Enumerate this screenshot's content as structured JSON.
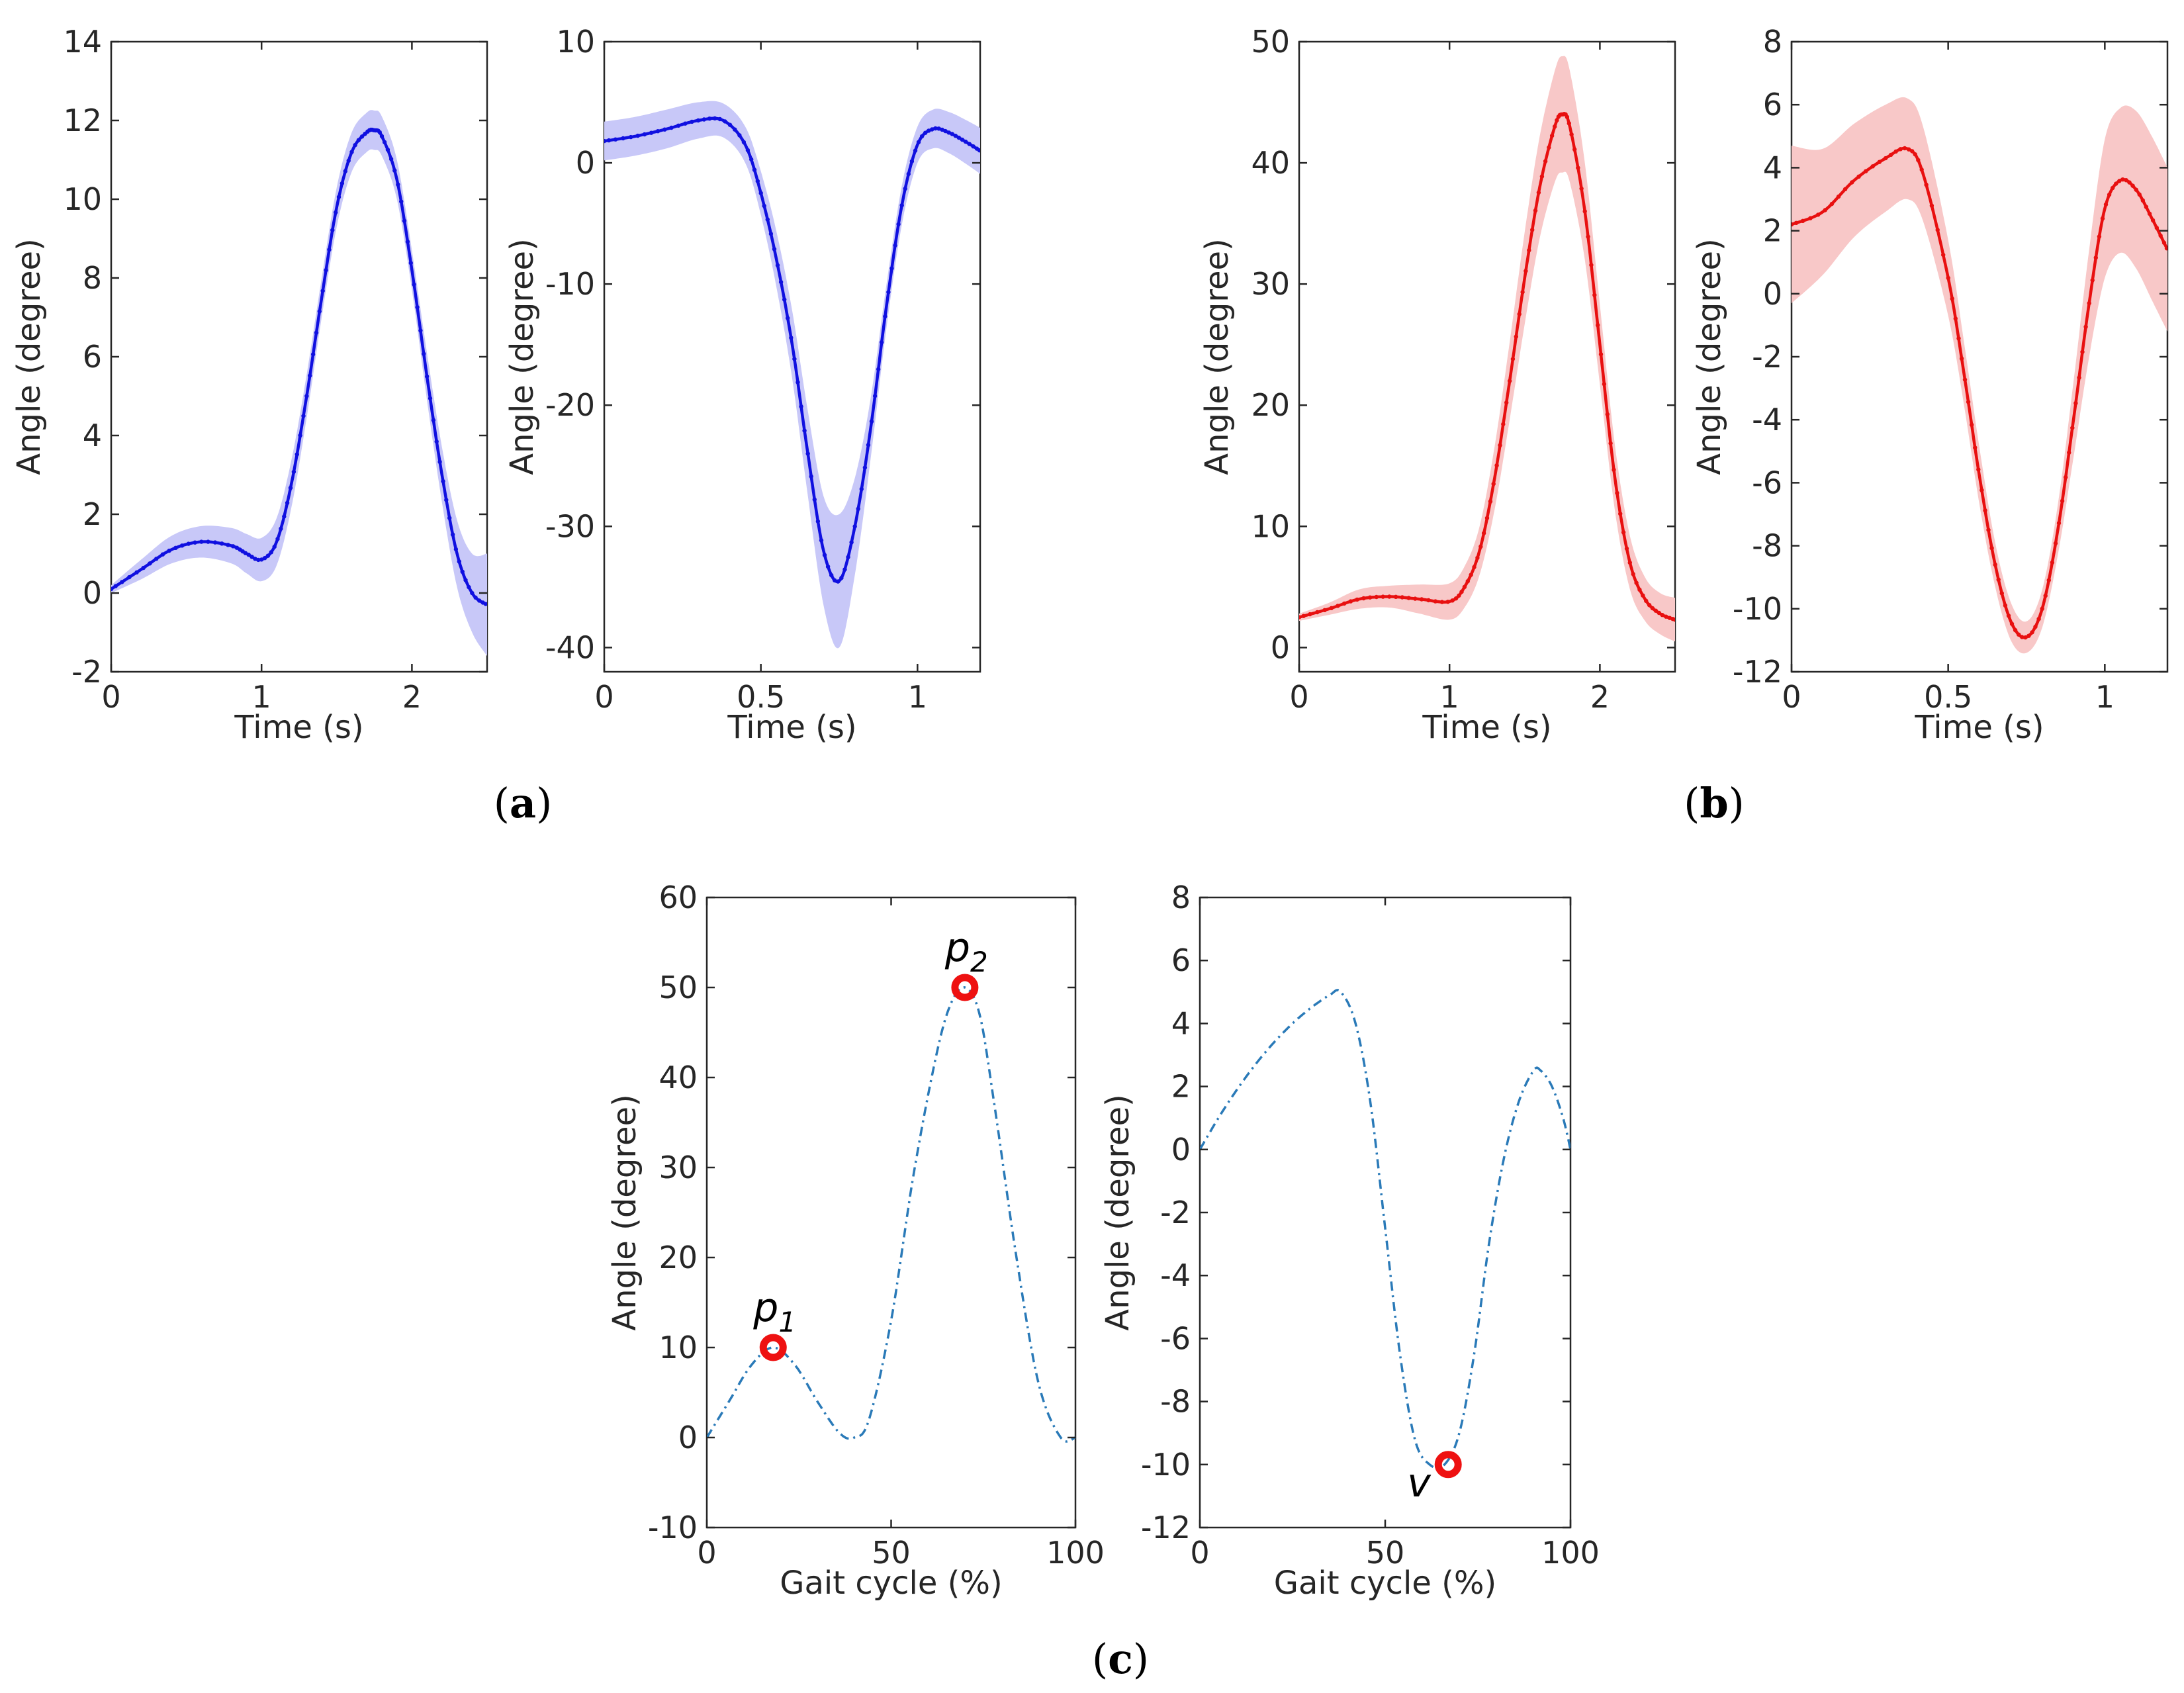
{
  "panel_labels": [
    "(a)",
    "(b)",
    "(c)"
  ],
  "panel_label_parts": [
    {
      "open": "(",
      "letter": "a",
      "close": ")"
    },
    {
      "open": "(",
      "letter": "b",
      "close": ")"
    },
    {
      "open": "(",
      "letter": "c",
      "close": ")"
    }
  ],
  "colors": {
    "blue": "#1010e0",
    "blue_band": "#c8c8f8",
    "red": "#e81010",
    "red_band": "#f8c8c8",
    "dashdot": "#2a7ab8",
    "marker": "#ee1111"
  },
  "chart_data": [
    {
      "id": "a1",
      "panel": "a",
      "type": "line",
      "xlabel": "Time (s)",
      "ylabel": "Angle (degree)",
      "xlim": [
        0,
        2.5
      ],
      "ylim": [
        -2,
        14
      ],
      "xticks": [
        0,
        1,
        2
      ],
      "xtick_labels": [
        "0",
        "1",
        "2"
      ],
      "yticks": [
        -2,
        0,
        2,
        4,
        6,
        8,
        10,
        12,
        14
      ],
      "ytick_labels": [
        "-2",
        "0",
        "2",
        "4",
        "6",
        "8",
        "10",
        "12",
        "14"
      ],
      "color": "blue",
      "band": true,
      "style": "dotted-solid",
      "series": [
        {
          "name": "mean",
          "x": [
            0,
            0.2,
            0.4,
            0.6,
            0.8,
            0.9,
            1.0,
            1.1,
            1.2,
            1.3,
            1.4,
            1.5,
            1.6,
            1.7,
            1.75,
            1.8,
            1.9,
            2.0,
            2.1,
            2.2,
            2.3,
            2.4,
            2.5
          ],
          "y": [
            0.1,
            0.6,
            1.1,
            1.3,
            1.2,
            1.0,
            0.85,
            1.3,
            2.8,
            5.0,
            7.5,
            9.8,
            11.2,
            11.7,
            11.75,
            11.6,
            10.5,
            8.2,
            5.5,
            3.0,
            1.0,
            0.0,
            -0.3
          ],
          "sd": [
            0.1,
            0.25,
            0.35,
            0.4,
            0.45,
            0.5,
            0.55,
            0.6,
            0.6,
            0.55,
            0.5,
            0.5,
            0.5,
            0.5,
            0.5,
            0.5,
            0.5,
            0.5,
            0.6,
            0.7,
            0.85,
            1.0,
            1.3
          ]
        }
      ]
    },
    {
      "id": "a2",
      "panel": "a",
      "type": "line",
      "xlabel": "Time (s)",
      "ylabel": "Angle (degree)",
      "xlim": [
        0,
        1.2
      ],
      "ylim": [
        -42,
        10
      ],
      "xticks": [
        0,
        0.5,
        1
      ],
      "xtick_labels": [
        "0",
        "0.5",
        "1"
      ],
      "yticks": [
        -40,
        -30,
        -20,
        -10,
        0,
        10
      ],
      "ytick_labels": [
        "-40",
        "-30",
        "-20",
        "-10",
        "0",
        "10"
      ],
      "color": "blue",
      "band": true,
      "style": "dotted-solid",
      "series": [
        {
          "name": "mean",
          "x": [
            0,
            0.1,
            0.2,
            0.3,
            0.38,
            0.45,
            0.5,
            0.55,
            0.6,
            0.65,
            0.7,
            0.75,
            0.8,
            0.85,
            0.9,
            0.95,
            1.0,
            1.05,
            1.1,
            1.15,
            1.2
          ],
          "y": [
            1.8,
            2.2,
            2.8,
            3.5,
            3.5,
            1.5,
            -2.5,
            -8.0,
            -15.0,
            -24.0,
            -32.0,
            -34.5,
            -30.0,
            -22.0,
            -12.0,
            -3.5,
            1.5,
            2.8,
            2.5,
            1.8,
            1.0
          ],
          "sd": [
            1.6,
            1.6,
            1.6,
            1.5,
            1.4,
            1.5,
            1.8,
            2.3,
            2.8,
            3.5,
            4.5,
            5.5,
            4.0,
            2.5,
            1.8,
            1.6,
            1.5,
            1.6,
            1.7,
            1.8,
            1.9
          ]
        }
      ]
    },
    {
      "id": "b1",
      "panel": "b",
      "type": "line",
      "xlabel": "Time (s)",
      "ylabel": "Angle (degree)",
      "xlim": [
        0,
        2.5
      ],
      "ylim": [
        -2,
        50
      ],
      "xticks": [
        0,
        1,
        2
      ],
      "xtick_labels": [
        "0",
        "1",
        "2"
      ],
      "yticks": [
        0,
        10,
        20,
        30,
        40,
        50
      ],
      "ytick_labels": [
        "0",
        "10",
        "20",
        "30",
        "40",
        "50"
      ],
      "color": "red",
      "band": true,
      "style": "dotted-solid",
      "series": [
        {
          "name": "mean",
          "x": [
            0,
            0.2,
            0.4,
            0.6,
            0.8,
            1.0,
            1.1,
            1.2,
            1.3,
            1.4,
            1.5,
            1.6,
            1.7,
            1.75,
            1.8,
            1.9,
            2.0,
            2.1,
            2.2,
            2.3,
            2.4,
            2.5
          ],
          "y": [
            2.5,
            3.2,
            4.0,
            4.2,
            4.0,
            3.8,
            5.0,
            8.0,
            14.0,
            22.0,
            30.5,
            38.0,
            43.0,
            44.0,
            43.0,
            36.0,
            25.0,
            14.0,
            7.0,
            4.0,
            2.8,
            2.3
          ],
          "sd": [
            0.3,
            0.5,
            0.8,
            0.9,
            1.2,
            1.5,
            1.7,
            2.0,
            2.6,
            3.2,
            3.8,
            4.2,
            4.6,
            4.8,
            4.6,
            4.0,
            3.3,
            2.7,
            2.2,
            1.8,
            1.7,
            1.8
          ]
        }
      ]
    },
    {
      "id": "b2",
      "panel": "b",
      "type": "line",
      "xlabel": "Time (s)",
      "ylabel": "Angle (degree)",
      "xlim": [
        0,
        1.2
      ],
      "ylim": [
        -12,
        8
      ],
      "xticks": [
        0,
        0.5,
        1
      ],
      "xtick_labels": [
        "0",
        "0.5",
        "1"
      ],
      "yticks": [
        -12,
        -10,
        -8,
        -6,
        -4,
        -2,
        0,
        2,
        4,
        6,
        8
      ],
      "ytick_labels": [
        "-12",
        "-10",
        "-8",
        "-6",
        "-4",
        "-2",
        "0",
        "2",
        "4",
        "6",
        "8"
      ],
      "color": "red",
      "band": true,
      "style": "dotted-solid",
      "series": [
        {
          "name": "mean",
          "x": [
            0,
            0.1,
            0.2,
            0.3,
            0.37,
            0.42,
            0.5,
            0.55,
            0.6,
            0.65,
            0.7,
            0.75,
            0.8,
            0.85,
            0.9,
            0.95,
            1.0,
            1.05,
            1.1,
            1.15,
            1.2
          ],
          "y": [
            2.2,
            2.6,
            3.6,
            4.3,
            4.6,
            3.8,
            0.5,
            -2.5,
            -5.8,
            -8.6,
            -10.4,
            -10.9,
            -10.0,
            -7.5,
            -4.0,
            -0.3,
            2.7,
            3.6,
            3.3,
            2.4,
            1.4
          ],
          "sd": [
            2.5,
            2.0,
            1.8,
            1.7,
            1.6,
            1.5,
            1.2,
            1.0,
            0.9,
            0.7,
            0.6,
            0.5,
            0.6,
            0.8,
            1.2,
            1.7,
            2.2,
            2.3,
            2.5,
            2.6,
            2.6
          ]
        }
      ]
    },
    {
      "id": "c1",
      "panel": "c",
      "type": "line",
      "xlabel": "Gait cycle (%)",
      "ylabel": "Angle (degree)",
      "xlim": [
        0,
        100
      ],
      "ylim": [
        -10,
        60
      ],
      "xticks": [
        0,
        50,
        100
      ],
      "xtick_labels": [
        "0",
        "50",
        "100"
      ],
      "yticks": [
        -10,
        0,
        10,
        20,
        30,
        40,
        50,
        60
      ],
      "ytick_labels": [
        "-10",
        "0",
        "10",
        "20",
        "30",
        "40",
        "50",
        "60"
      ],
      "color": "dashdot",
      "band": false,
      "style": "dash-dot",
      "series": [
        {
          "name": "model",
          "x": [
            0,
            6,
            12,
            18,
            24,
            30,
            36,
            40,
            44,
            50,
            56,
            62,
            66,
            70,
            74,
            78,
            84,
            90,
            96,
            100
          ],
          "y": [
            0,
            4,
            8,
            10,
            8,
            4,
            0.5,
            0,
            2,
            13,
            29,
            42,
            48,
            50,
            47,
            37,
            20,
            6,
            0,
            0
          ]
        }
      ],
      "markers": [
        {
          "x": 18,
          "y": 10,
          "label": "p",
          "sub": "1",
          "label_pos": "above"
        },
        {
          "x": 70,
          "y": 50,
          "label": "p",
          "sub": "2",
          "label_pos": "above"
        }
      ]
    },
    {
      "id": "c2",
      "panel": "c",
      "type": "line",
      "xlabel": "Gait cycle (%)",
      "ylabel": "Angle (degree)",
      "xlim": [
        0,
        100
      ],
      "ylim": [
        -12,
        8
      ],
      "xticks": [
        0,
        50,
        100
      ],
      "xtick_labels": [
        "0",
        "50",
        "100"
      ],
      "yticks": [
        -12,
        -10,
        -8,
        -6,
        -4,
        -2,
        0,
        2,
        4,
        6,
        8
      ],
      "ytick_labels": [
        "-12",
        "-10",
        "-8",
        "-6",
        "-4",
        "-2",
        "0",
        "2",
        "4",
        "6",
        "8"
      ],
      "color": "dashdot",
      "band": false,
      "style": "dash-dot",
      "series": [
        {
          "name": "model",
          "x": [
            0,
            5,
            10,
            15,
            20,
            25,
            30,
            35,
            38,
            42,
            46,
            50,
            54,
            58,
            62,
            66,
            70,
            74,
            78,
            82,
            86,
            90,
            92,
            95,
            98,
            100
          ],
          "y": [
            0,
            1.0,
            1.9,
            2.7,
            3.4,
            4.0,
            4.5,
            4.9,
            5.0,
            4.0,
            1.5,
            -2.5,
            -6.5,
            -9.2,
            -10.0,
            -10.0,
            -9.0,
            -6.5,
            -3.0,
            -0.3,
            1.5,
            2.5,
            2.5,
            2.0,
            1.0,
            0
          ]
        }
      ],
      "markers": [
        {
          "x": 67,
          "y": -10,
          "label": "v",
          "sub": "",
          "label_pos": "below-left"
        }
      ]
    }
  ]
}
